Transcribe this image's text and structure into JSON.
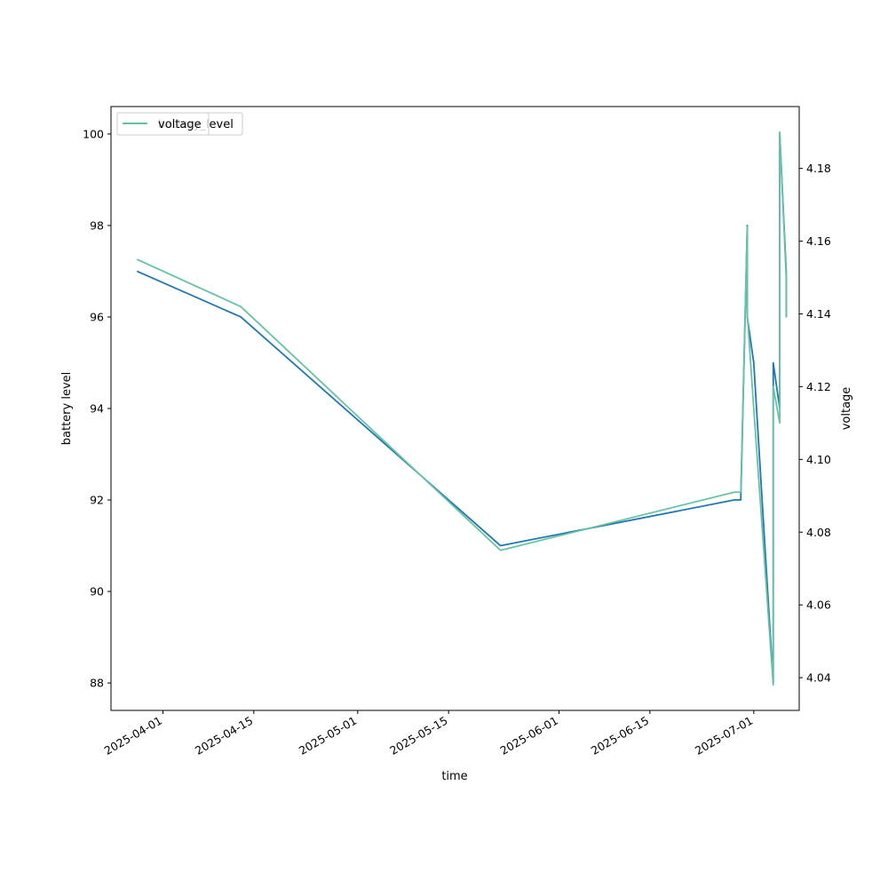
{
  "chart_data": {
    "type": "line",
    "xlabel": "time",
    "ylabel_left": "battery level",
    "ylabel_right": "voltage",
    "xlim": [
      "2025-03-24",
      "2025-07-08"
    ],
    "ylim_left": [
      87.4,
      100.6
    ],
    "ylim_right": [
      4.031,
      4.197
    ],
    "x_ticks": [
      "2025-04-01",
      "2025-04-15",
      "2025-05-01",
      "2025-05-15",
      "2025-06-01",
      "2025-06-15",
      "2025-07-01"
    ],
    "y_ticks_left": [
      88,
      90,
      92,
      94,
      96,
      98,
      100
    ],
    "y_ticks_right": [
      4.04,
      4.06,
      4.08,
      4.1,
      4.12,
      4.14,
      4.16,
      4.18
    ],
    "grid": false,
    "legends": [
      {
        "label": "voltage",
        "color": "#66c2a5",
        "placement": "top-left"
      },
      {
        "label": "battery_level",
        "color": "#1f77b4",
        "placement": "top-left"
      }
    ],
    "series": [
      {
        "name": "battery_level",
        "axis": "left",
        "color": "#1f77b4",
        "x": [
          "2025-03-28",
          "2025-04-13",
          "2025-05-23",
          "2025-06-28",
          "2025-06-29",
          "2025-06-30",
          "2025-06-30",
          "2025-07-01",
          "2025-07-04",
          "2025-07-04",
          "2025-07-05",
          "2025-07-05",
          "2025-07-06",
          "2025-07-06"
        ],
        "values": [
          97,
          96,
          91,
          92,
          92,
          98,
          96,
          95,
          88,
          95,
          94,
          100,
          97,
          96
        ]
      },
      {
        "name": "voltage",
        "axis": "right",
        "color": "#66c2a5",
        "x": [
          "2025-03-28",
          "2025-04-13",
          "2025-05-23",
          "2025-06-28",
          "2025-06-29",
          "2025-06-30",
          "2025-06-30",
          "2025-07-01",
          "2025-07-04",
          "2025-07-04",
          "2025-07-05",
          "2025-07-05",
          "2025-07-06",
          "2025-07-06"
        ],
        "values": [
          4.155,
          4.142,
          4.075,
          4.091,
          4.091,
          4.164,
          4.14,
          4.114,
          4.038,
          4.12,
          4.11,
          4.19,
          4.15,
          4.139
        ]
      }
    ]
  }
}
